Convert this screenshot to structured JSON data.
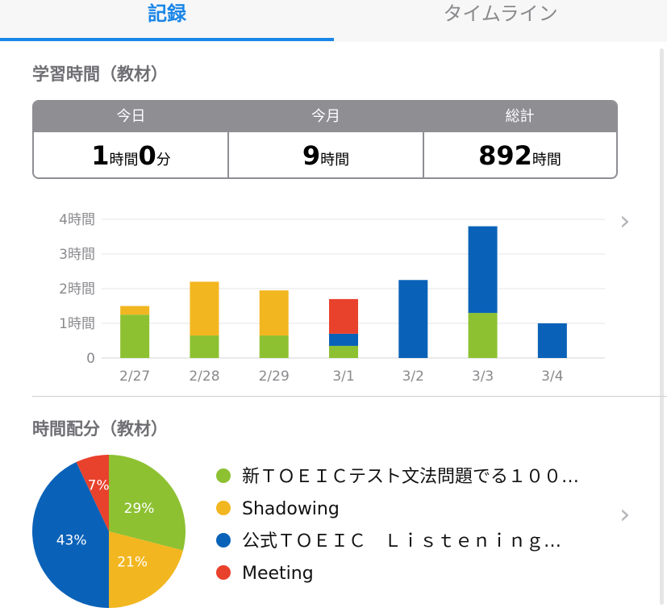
{
  "tabs": {
    "active": "記録",
    "inactive": "タイムライン"
  },
  "section1_title": "学習時間（教材）",
  "summary": {
    "today": {
      "label": "今日",
      "hours": "1",
      "hours_unit": "時間",
      "minutes": "0",
      "minutes_unit": "分"
    },
    "month": {
      "label": "今月",
      "value": "9",
      "unit": "時間"
    },
    "total": {
      "label": "総計",
      "value": "892",
      "unit": "時間"
    }
  },
  "section2_title": "時間配分（教材）",
  "colors": {
    "green": "#8dc132",
    "yellow": "#f2b620",
    "blue": "#0a62b8",
    "red": "#e8412c",
    "accent": "#1a86e8"
  },
  "chart_data": [
    {
      "type": "bar",
      "stacked": true,
      "categories": [
        "2/27",
        "2/28",
        "2/29",
        "3/1",
        "3/2",
        "3/3",
        "3/4"
      ],
      "y_ticks": [
        "0",
        "1時間",
        "2時間",
        "3時間",
        "4時間"
      ],
      "ylim": [
        0,
        4
      ],
      "grid": true,
      "series": [
        {
          "name": "新ＴＯＥＩＣテスト文法問題でる１００…",
          "color": "#8dc132",
          "values": [
            1.25,
            0.65,
            0.65,
            0.35,
            0,
            1.3,
            0
          ]
        },
        {
          "name": "Shadowing",
          "color": "#f2b620",
          "values": [
            0.25,
            1.55,
            1.3,
            0,
            0,
            0,
            0
          ]
        },
        {
          "name": "公式ＴＯＥＩＣ　Ｌｉｓｔｅｎｉｎｇ…",
          "color": "#0a62b8",
          "values": [
            0,
            0,
            0,
            0.35,
            2.25,
            2.5,
            1.0
          ]
        },
        {
          "name": "Meeting",
          "color": "#e8412c",
          "values": [
            0,
            0,
            0,
            1.0,
            0,
            0,
            0
          ]
        }
      ]
    },
    {
      "type": "pie",
      "slices": [
        {
          "name": "新ＴＯＥＩＣテスト文法問題でる１００…",
          "value": 29,
          "label": "29%",
          "color": "#8dc132"
        },
        {
          "name": "Shadowing",
          "value": 21,
          "label": "21%",
          "color": "#f2b620"
        },
        {
          "name": "公式ＴＯＥＩＣ　Ｌｉｓｔｅｎｉｎｇ…",
          "value": 43,
          "label": "43%",
          "color": "#0a62b8"
        },
        {
          "name": "Meeting",
          "value": 7,
          "label": "7%",
          "color": "#e8412c"
        }
      ]
    }
  ]
}
